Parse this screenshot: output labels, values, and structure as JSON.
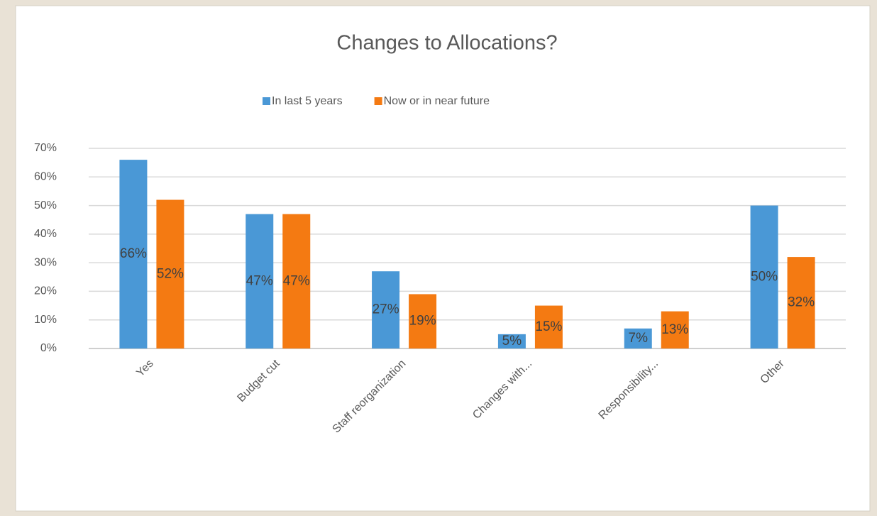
{
  "chart_data": {
    "type": "bar",
    "title": "Changes to Allocations?",
    "categories": [
      "Yes",
      "Budget cut",
      "Staff reorganization",
      "Changes with...",
      "Responsibility...",
      "Other"
    ],
    "series": [
      {
        "name": "In last 5 years",
        "color": "#4a98d6",
        "values": [
          66,
          47,
          27,
          5,
          7,
          50
        ],
        "value_labels": [
          "66%",
          "47%",
          "27%",
          "5%",
          "7%",
          "50%"
        ]
      },
      {
        "name": "Now or in near future",
        "color": "#f47a12",
        "values": [
          52,
          47,
          19,
          15,
          13,
          32
        ],
        "value_labels": [
          "52%",
          "47%",
          "19%",
          "15%",
          "13%",
          "32%"
        ]
      }
    ],
    "ylim": [
      0,
      70
    ],
    "yticks": [
      {
        "value": 0,
        "label": "0%"
      },
      {
        "value": 10,
        "label": "10%"
      },
      {
        "value": 20,
        "label": "20%"
      },
      {
        "value": 30,
        "label": "30%"
      },
      {
        "value": 40,
        "label": "40%"
      },
      {
        "value": 50,
        "label": "50%"
      },
      {
        "value": 60,
        "label": "60%"
      },
      {
        "value": 70,
        "label": "70%"
      }
    ],
    "grid": true,
    "legend": "top"
  }
}
